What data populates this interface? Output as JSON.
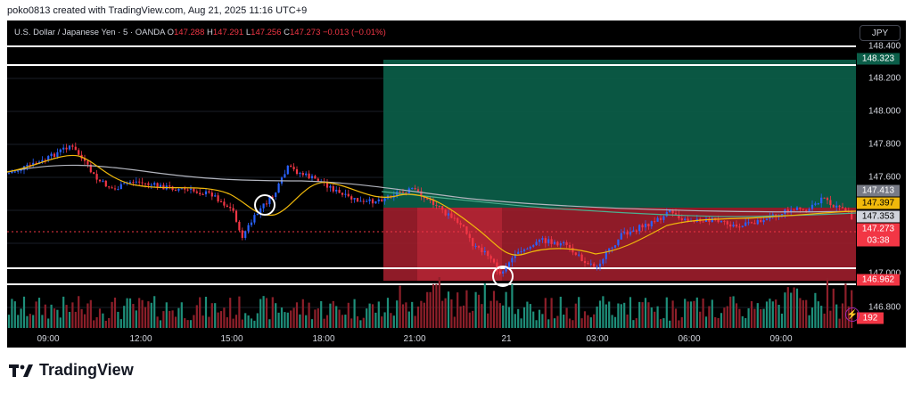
{
  "header": {
    "text": "poko0813 created with TradingView.com, Aug 21, 2025 11:16 UTC+9"
  },
  "symbol": {
    "title": "U.S. Dollar / Japanese Yen · 5 · OANDA",
    "open_label": "O",
    "open": "147.288",
    "high_label": "H",
    "high": "147.291",
    "low_label": "L",
    "low": "147.256",
    "close_label": "C",
    "close": "147.273",
    "change": "−0.013 (−0.01%)"
  },
  "currency_button": "JPY",
  "price_axis": [
    "148.400",
    "148.200",
    "148.000",
    "147.800",
    "147.600",
    "147.000",
    "146.800"
  ],
  "time_axis": [
    "09:00",
    "12:00",
    "15:00",
    "18:00",
    "21:00",
    "21",
    "03:00",
    "06:00",
    "09:00"
  ],
  "badges": {
    "target": "148.323",
    "ma1": "147.413",
    "ma2": "147.397",
    "ma3": "147.353",
    "last_price": "147.273",
    "countdown": "03:38",
    "stop": "146.962",
    "volume": "192"
  },
  "colors": {
    "background": "#000000",
    "up": "#2962ff",
    "down": "#f23645",
    "profit_zone": "#0b5e49",
    "loss_zone": "#a8202f",
    "ma_fast": "#f0b90b",
    "ma_slow": "#b2b5be",
    "ma_mid": "#4caf8f"
  },
  "icons": {
    "logo": "tradingview-logo-icon",
    "alert": "lightning-icon"
  },
  "footer": {
    "brand": "TradingView"
  }
}
